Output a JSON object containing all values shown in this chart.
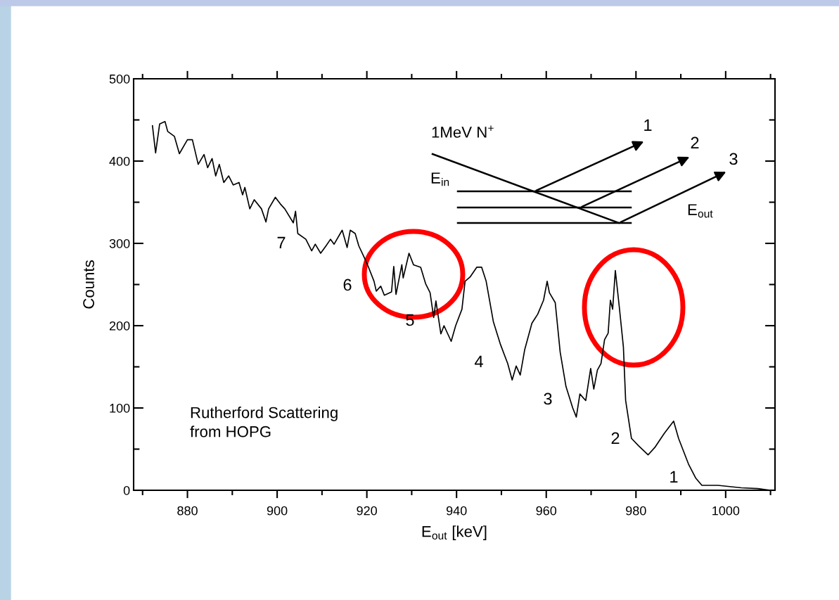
{
  "chart_data": {
    "type": "line",
    "xlabel": "E$_{out}$ [keV]",
    "ylabel": "Counts",
    "x": [
      872.2,
      872.9,
      873.8,
      875.0,
      875.6,
      877.1,
      878.2,
      880.0,
      881.1,
      882.4,
      883.7,
      884.5,
      885.5,
      886.3,
      887.1,
      888.1,
      889.2,
      890.2,
      891.5,
      892.3,
      892.8,
      893.9,
      894.9,
      896.5,
      897.5,
      898.1,
      899.6,
      900.7,
      901.7,
      903.6,
      904.1,
      904.6,
      906.4,
      907.7,
      908.5,
      909.7,
      910.9,
      911.9,
      912.7,
      914.5,
      915.6,
      916.3,
      917.4,
      918.2,
      919.5,
      920.3,
      921.6,
      922.1,
      923.1,
      923.9,
      925.5,
      926.0,
      926.5,
      927.8,
      928.1,
      929.4,
      930.4,
      932.0,
      933.1,
      934.1,
      934.9,
      935.4,
      936.5,
      937.2,
      938.8,
      939.8,
      941.2,
      941.9,
      943.0,
      944.5,
      945.6,
      946.6,
      948.2,
      949.8,
      951.4,
      952.4,
      953.3,
      954.2,
      955.2,
      956.8,
      958.1,
      959.4,
      960.2,
      960.7,
      962.0,
      963.1,
      964.4,
      965.9,
      966.7,
      967.5,
      968.8,
      969.9,
      970.6,
      971.4,
      972.2,
      973.0,
      973.8,
      974.3,
      974.8,
      975.4,
      976.3,
      977.2,
      977.7,
      979.0,
      980.6,
      982.7,
      984.2,
      986.3,
      987.4,
      988.4,
      989.5,
      991.7,
      993.3,
      994.7,
      998.3,
      1003.5,
      1007.2,
      1009.8
    ],
    "series": [
      {
        "color": "#000000",
        "values": [
          443,
          410,
          445,
          448,
          436,
          430,
          409,
          426,
          426,
          396,
          408,
          392,
          403,
          382,
          396,
          374,
          382,
          371,
          374,
          359,
          368,
          342,
          353,
          342,
          326,
          342,
          356,
          348,
          342,
          325,
          339,
          312,
          305,
          291,
          299,
          288,
          297,
          305,
          299,
          316,
          295,
          316,
          312,
          297,
          282,
          272,
          254,
          242,
          248,
          237,
          241,
          272,
          238,
          274,
          258,
          288,
          274,
          271,
          251,
          240,
          210,
          230,
          190,
          200,
          181,
          200,
          220,
          254,
          259,
          271,
          271,
          254,
          205,
          177,
          154,
          134,
          151,
          140,
          171,
          203,
          214,
          231,
          254,
          240,
          228,
          168,
          126,
          100,
          89,
          117,
          109,
          148,
          123,
          146,
          154,
          183,
          191,
          231,
          220,
          267,
          222,
          174,
          109,
          63,
          54,
          43,
          52,
          69,
          77,
          84,
          63,
          32,
          15,
          6,
          6,
          3,
          2,
          0
        ]
      }
    ],
    "xlim": [
      868,
      1011
    ],
    "ylim": [
      0,
      500
    ],
    "xticks": [
      {
        "value": 870,
        "label": null
      },
      880,
      {
        "value": 890,
        "label": null
      },
      900,
      {
        "value": 910,
        "label": null
      },
      920,
      {
        "value": 930,
        "label": null
      },
      940,
      {
        "value": 950,
        "label": null
      },
      960,
      {
        "value": 970,
        "label": null
      },
      980,
      {
        "value": 990,
        "label": null
      },
      1000,
      {
        "value": 1010,
        "label": null
      }
    ],
    "yticks": [
      0,
      {
        "value": 50,
        "label": null
      },
      100,
      {
        "value": 150,
        "label": null
      },
      200,
      {
        "value": 250,
        "label": null
      },
      300,
      {
        "value": 350,
        "label": null
      },
      400,
      {
        "value": 450,
        "label": null
      },
      500
    ],
    "annotations": [
      "7",
      "6",
      "5",
      "4",
      "3",
      "2",
      "1",
      "Rutherford Scattering\nfrom HOPG",
      "1MeV N$^{+}$",
      "E$_{in}$",
      "E$_{out}$",
      "1",
      "2",
      "3"
    ]
  }
}
